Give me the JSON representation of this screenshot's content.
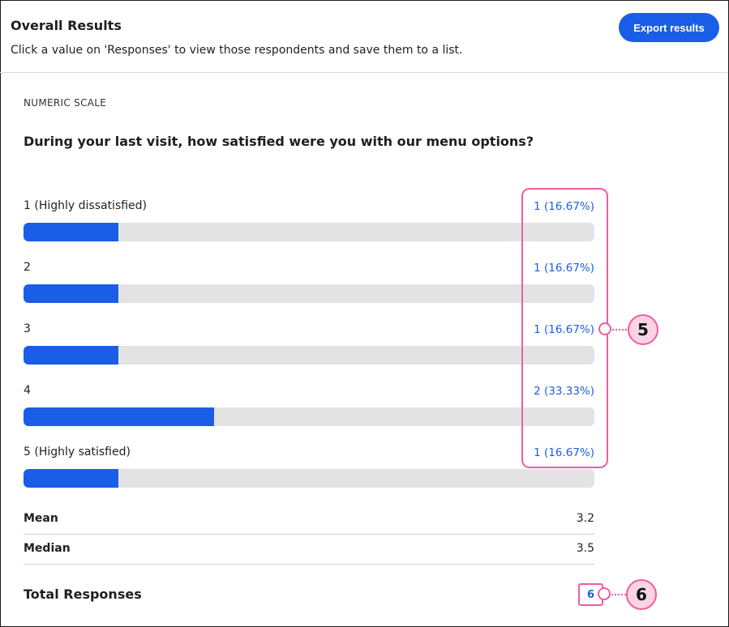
{
  "header": {
    "title": "Overall Results",
    "subtitle": "Click a value on 'Responses' to view those respondents and save them to a list.",
    "export_label": "Export results"
  },
  "question": {
    "type": "NUMERIC SCALE",
    "text": "During your last visit, how satisfied were you with our menu options?"
  },
  "options": [
    {
      "label": "1 (Highly dissatisfied)",
      "responses": "1 (16.67%)",
      "percent": 16.67
    },
    {
      "label": "2",
      "responses": "1 (16.67%)",
      "percent": 16.67
    },
    {
      "label": "3",
      "responses": "1 (16.67%)",
      "percent": 16.67
    },
    {
      "label": "4",
      "responses": "2 (33.33%)",
      "percent": 33.33
    },
    {
      "label": "5 (Highly satisfied)",
      "responses": "1 (16.67%)",
      "percent": 16.67
    }
  ],
  "stats": {
    "mean_label": "Mean",
    "mean_value": "3.2",
    "median_label": "Median",
    "median_value": "3.5"
  },
  "total": {
    "label": "Total Responses",
    "value": "6"
  },
  "callouts": {
    "responses_callout": "5",
    "total_callout": "6"
  },
  "colors": {
    "accent": "#1a5ee8",
    "callout": "#ee5e9f",
    "callout_fill": "#fbd3e5"
  }
}
